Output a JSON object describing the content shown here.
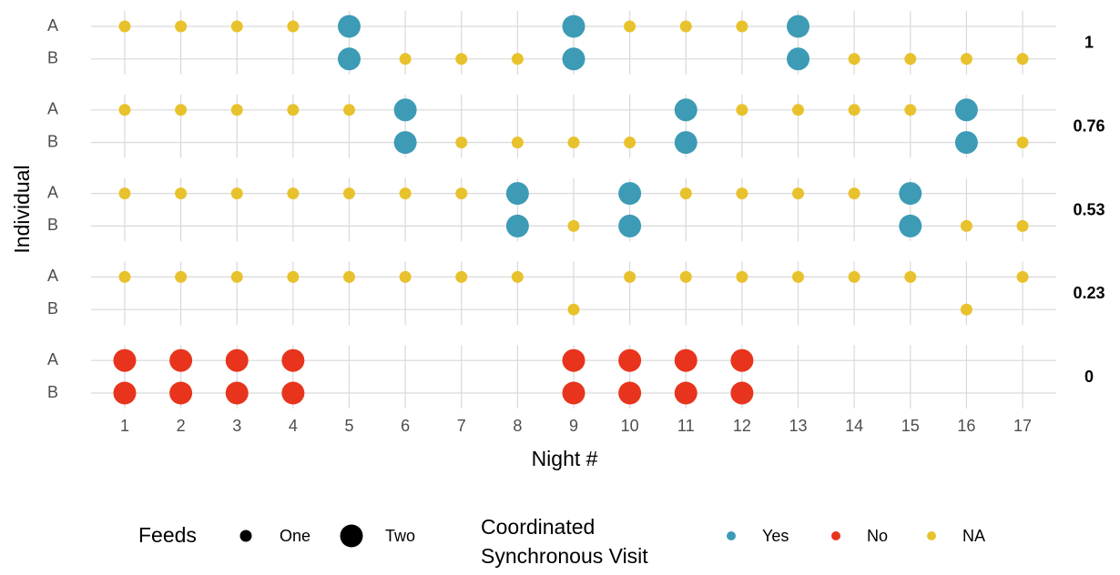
{
  "chart_data": {
    "type": "faceted-dot",
    "x_label": "Night #",
    "y_label": "Individual",
    "xlim": [
      0.4,
      17.6
    ],
    "xticks": [
      1,
      2,
      3,
      4,
      5,
      6,
      7,
      8,
      9,
      10,
      11,
      12,
      13,
      14,
      15,
      16,
      17
    ],
    "rows": [
      "A",
      "B"
    ],
    "grid": true,
    "size_legend": {
      "title": "Feeds",
      "levels": [
        "One",
        "Two"
      ]
    },
    "color_legend": {
      "title": [
        "Coordinated",
        "Synchronous Visit"
      ],
      "levels": [
        {
          "name": "Yes",
          "color": "#3d9bb6"
        },
        {
          "name": "No",
          "color": "#e8341c"
        },
        {
          "name": "NA",
          "color": "#e8c22c"
        }
      ]
    },
    "panels": [
      {
        "label": "1",
        "rows": [
          {
            "x": [
              1,
              2,
              3,
              4,
              5,
              9,
              10,
              11,
              12,
              13
            ],
            "feeds": [
              "One",
              "One",
              "One",
              "One",
              "Two",
              "Two",
              "One",
              "One",
              "One",
              "Two"
            ],
            "visit": [
              "NA",
              "NA",
              "NA",
              "NA",
              "Yes",
              "Yes",
              "NA",
              "NA",
              "NA",
              "Yes"
            ]
          },
          {
            "x": [
              5,
              6,
              7,
              8,
              9,
              13,
              14,
              15,
              16,
              17
            ],
            "feeds": [
              "Two",
              "One",
              "One",
              "One",
              "Two",
              "Two",
              "One",
              "One",
              "One",
              "One"
            ],
            "visit": [
              "Yes",
              "NA",
              "NA",
              "NA",
              "Yes",
              "Yes",
              "NA",
              "NA",
              "NA",
              "NA"
            ]
          }
        ]
      },
      {
        "label": "0.76",
        "rows": [
          {
            "x": [
              1,
              2,
              3,
              4,
              5,
              6,
              11,
              12,
              13,
              14,
              15,
              16
            ],
            "feeds": [
              "One",
              "One",
              "One",
              "One",
              "One",
              "Two",
              "Two",
              "One",
              "One",
              "One",
              "One",
              "Two"
            ],
            "visit": [
              "NA",
              "NA",
              "NA",
              "NA",
              "NA",
              "Yes",
              "Yes",
              "NA",
              "NA",
              "NA",
              "NA",
              "Yes"
            ]
          },
          {
            "x": [
              6,
              7,
              8,
              9,
              10,
              11,
              16,
              17
            ],
            "feeds": [
              "Two",
              "One",
              "One",
              "One",
              "One",
              "Two",
              "Two",
              "One"
            ],
            "visit": [
              "Yes",
              "NA",
              "NA",
              "NA",
              "NA",
              "Yes",
              "Yes",
              "NA"
            ]
          }
        ]
      },
      {
        "label": "0.53",
        "rows": [
          {
            "x": [
              1,
              2,
              3,
              4,
              5,
              6,
              7,
              8,
              10,
              11,
              12,
              13,
              14,
              15
            ],
            "feeds": [
              "One",
              "One",
              "One",
              "One",
              "One",
              "One",
              "One",
              "Two",
              "Two",
              "One",
              "One",
              "One",
              "One",
              "Two"
            ],
            "visit": [
              "NA",
              "NA",
              "NA",
              "NA",
              "NA",
              "NA",
              "NA",
              "Yes",
              "Yes",
              "NA",
              "NA",
              "NA",
              "NA",
              "Yes"
            ]
          },
          {
            "x": [
              8,
              9,
              10,
              15,
              16,
              17
            ],
            "feeds": [
              "Two",
              "One",
              "Two",
              "Two",
              "One",
              "One"
            ],
            "visit": [
              "Yes",
              "NA",
              "Yes",
              "Yes",
              "NA",
              "NA"
            ]
          }
        ]
      },
      {
        "label": "0.23",
        "rows": [
          {
            "x": [
              1,
              2,
              3,
              4,
              5,
              6,
              7,
              8,
              10,
              11,
              12,
              13,
              14,
              15,
              17
            ],
            "feeds": [
              "One",
              "One",
              "One",
              "One",
              "One",
              "One",
              "One",
              "One",
              "One",
              "One",
              "One",
              "One",
              "One",
              "One",
              "One"
            ],
            "visit": [
              "NA",
              "NA",
              "NA",
              "NA",
              "NA",
              "NA",
              "NA",
              "NA",
              "NA",
              "NA",
              "NA",
              "NA",
              "NA",
              "NA",
              "NA"
            ]
          },
          {
            "x": [
              9,
              16
            ],
            "feeds": [
              "One",
              "One"
            ],
            "visit": [
              "NA",
              "NA"
            ]
          }
        ]
      },
      {
        "label": "0",
        "rows": [
          {
            "x": [
              1,
              2,
              3,
              4,
              9,
              10,
              11,
              12
            ],
            "feeds": [
              "Two",
              "Two",
              "Two",
              "Two",
              "Two",
              "Two",
              "Two",
              "Two"
            ],
            "visit": [
              "No",
              "No",
              "No",
              "No",
              "No",
              "No",
              "No",
              "No"
            ]
          },
          {
            "x": [
              1,
              2,
              3,
              4,
              9,
              10,
              11,
              12
            ],
            "feeds": [
              "Two",
              "Two",
              "Two",
              "Two",
              "Two",
              "Two",
              "Two",
              "Two"
            ],
            "visit": [
              "No",
              "No",
              "No",
              "No",
              "No",
              "No",
              "No",
              "No"
            ]
          }
        ]
      }
    ]
  }
}
